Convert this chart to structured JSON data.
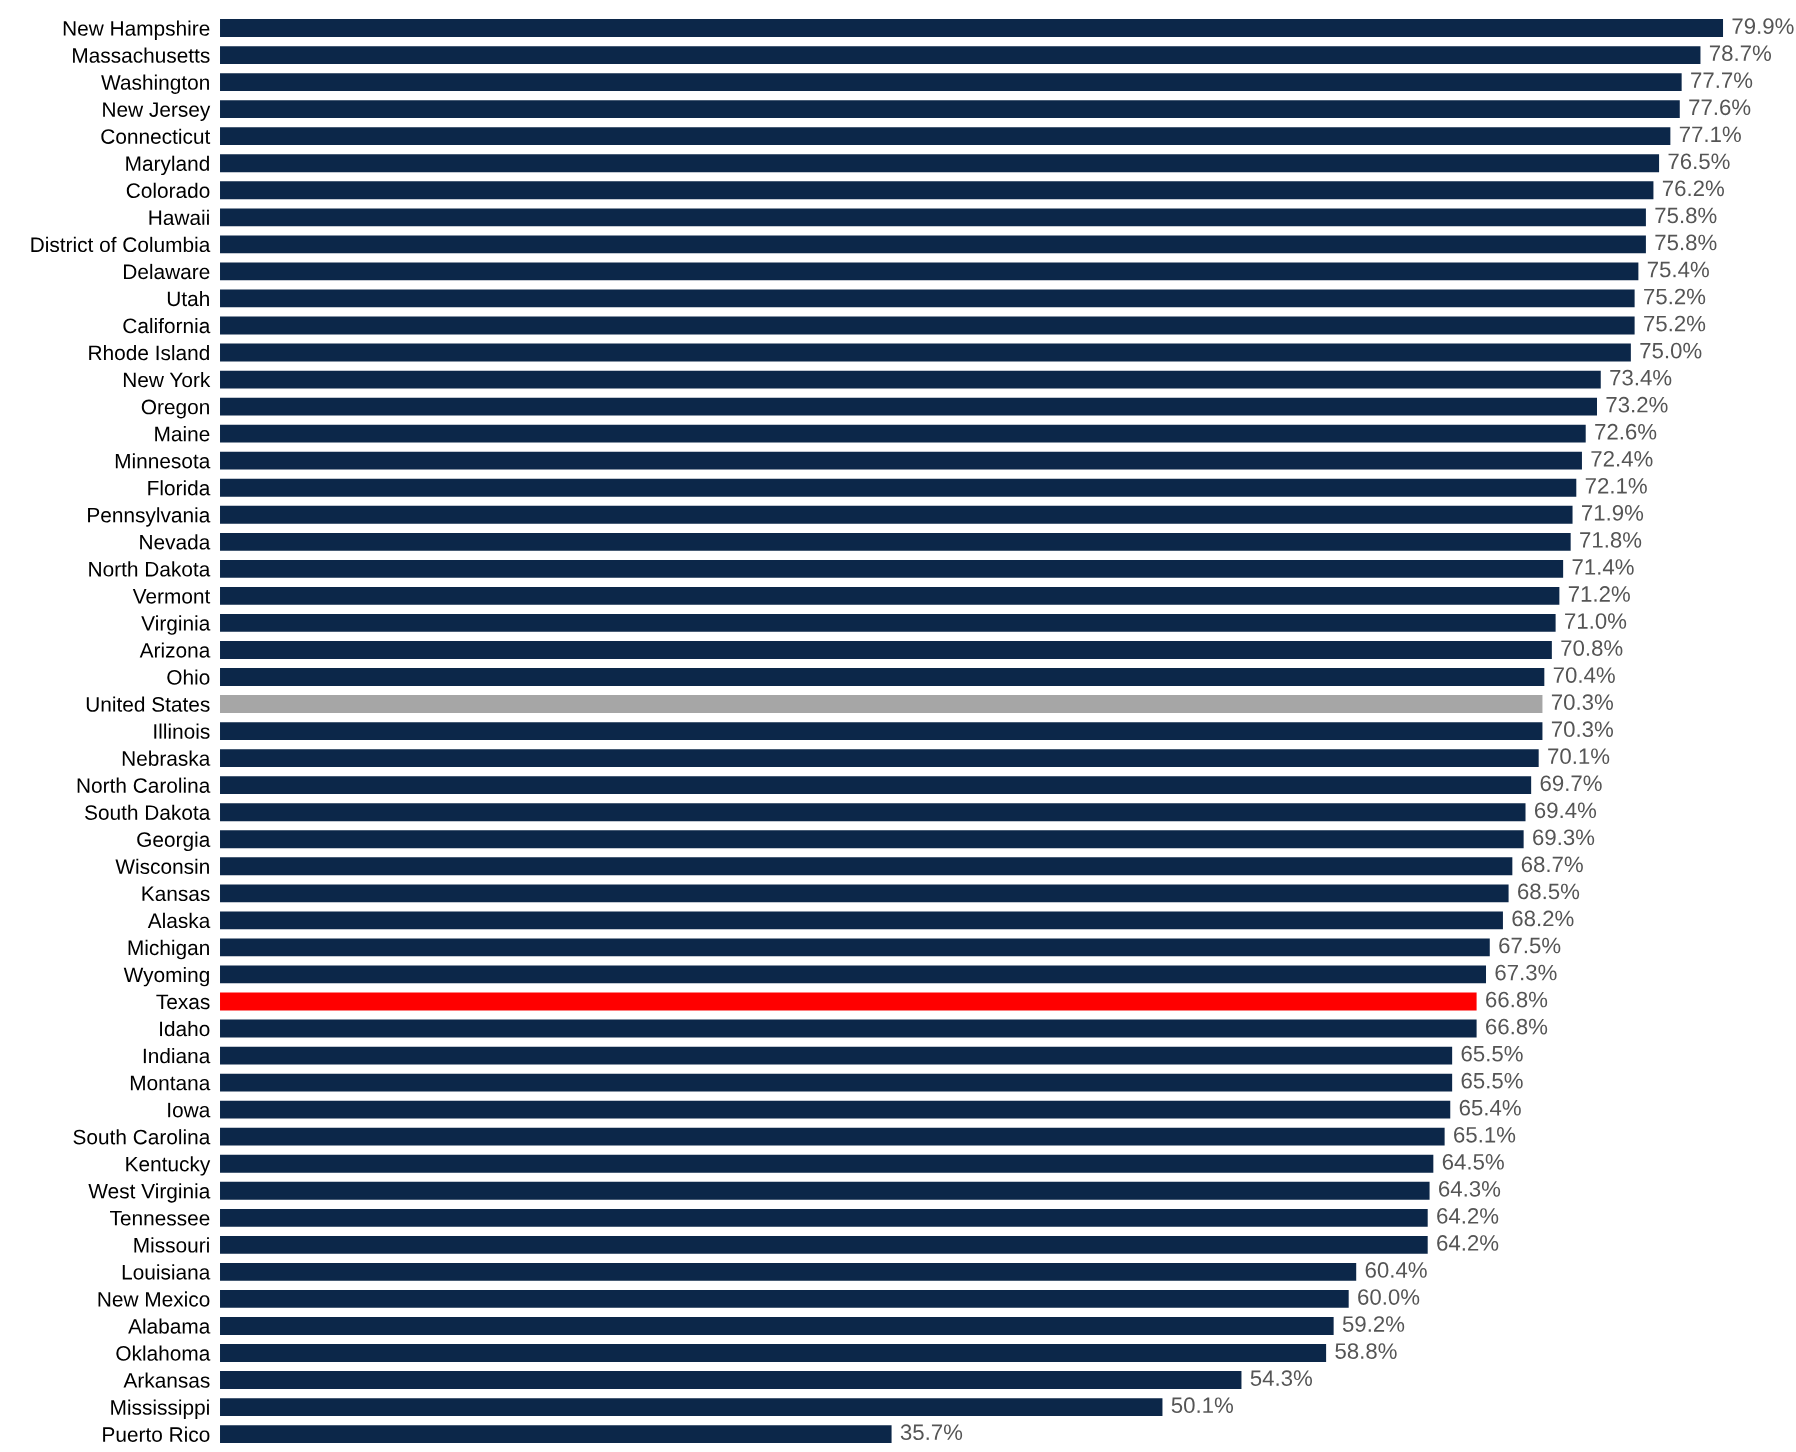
{
  "chart_data": {
    "type": "bar",
    "orientation": "horizontal",
    "data_labels": true,
    "grid": false,
    "legend": false,
    "tick_labels": "y",
    "categories": [
      "New Hampshire",
      "Massachusetts",
      "Washington",
      "New Jersey",
      "Connecticut",
      "Maryland",
      "Colorado",
      "Hawaii",
      "District of Columbia",
      "Delaware",
      "Utah",
      "California",
      "Rhode Island",
      "New York",
      "Oregon",
      "Maine",
      "Minnesota",
      "Florida",
      "Pennsylvania",
      "Nevada",
      "North Dakota",
      "Vermont",
      "Virginia",
      "Arizona",
      "Ohio",
      "United States",
      "Illinois",
      "Nebraska",
      "North Carolina",
      "South Dakota",
      "Georgia",
      "Wisconsin",
      "Kansas",
      "Alaska",
      "Michigan",
      "Wyoming",
      "Texas",
      "Idaho",
      "Indiana",
      "Montana",
      "Iowa",
      "South Carolina",
      "Kentucky",
      "West Virginia",
      "Tennessee",
      "Missouri",
      "Louisiana",
      "New Mexico",
      "Alabama",
      "Oklahoma",
      "Arkansas",
      "Mississippi",
      "Puerto Rico"
    ],
    "values": [
      79.9,
      78.7,
      77.7,
      77.6,
      77.1,
      76.5,
      76.2,
      75.8,
      75.8,
      75.4,
      75.2,
      75.2,
      75.0,
      73.4,
      73.2,
      72.6,
      72.4,
      72.1,
      71.9,
      71.8,
      71.4,
      71.2,
      71.0,
      70.8,
      70.4,
      70.3,
      70.3,
      70.1,
      69.7,
      69.4,
      69.3,
      68.7,
      68.5,
      68.2,
      67.5,
      67.3,
      66.8,
      66.8,
      65.5,
      65.5,
      65.4,
      65.1,
      64.5,
      64.3,
      64.2,
      64.2,
      60.4,
      60.0,
      59.2,
      58.8,
      54.3,
      50.1,
      35.7
    ],
    "value_labels": [
      "79.9%",
      "78.7%",
      "77.7%",
      "77.6%",
      "77.1%",
      "76.5%",
      "76.2%",
      "75.8%",
      "75.8%",
      "75.4%",
      "75.2%",
      "75.2%",
      "75.0%",
      "73.4%",
      "73.2%",
      "72.6%",
      "72.4%",
      "72.1%",
      "71.9%",
      "71.8%",
      "71.4%",
      "71.2%",
      "71.0%",
      "70.8%",
      "70.4%",
      "70.3%",
      "70.3%",
      "70.1%",
      "69.7%",
      "69.4%",
      "69.3%",
      "68.7%",
      "68.5%",
      "68.2%",
      "67.5%",
      "67.3%",
      "66.8%",
      "66.8%",
      "65.5%",
      "65.5%",
      "65.4%",
      "65.1%",
      "64.5%",
      "64.3%",
      "64.2%",
      "64.2%",
      "60.4%",
      "60.0%",
      "59.2%",
      "58.8%",
      "54.3%",
      "50.1%",
      "35.7%"
    ],
    "colors": [
      "#0c2749",
      "#0c2749",
      "#0c2749",
      "#0c2749",
      "#0c2749",
      "#0c2749",
      "#0c2749",
      "#0c2749",
      "#0c2749",
      "#0c2749",
      "#0c2749",
      "#0c2749",
      "#0c2749",
      "#0c2749",
      "#0c2749",
      "#0c2749",
      "#0c2749",
      "#0c2749",
      "#0c2749",
      "#0c2749",
      "#0c2749",
      "#0c2749",
      "#0c2749",
      "#0c2749",
      "#0c2749",
      "#a6a6a6",
      "#0c2749",
      "#0c2749",
      "#0c2749",
      "#0c2749",
      "#0c2749",
      "#0c2749",
      "#0c2749",
      "#0c2749",
      "#0c2749",
      "#0c2749",
      "#ff0000",
      "#0c2749",
      "#0c2749",
      "#0c2749",
      "#0c2749",
      "#0c2749",
      "#0c2749",
      "#0c2749",
      "#0c2749",
      "#0c2749",
      "#0c2749",
      "#0c2749",
      "#0c2749",
      "#0c2749",
      "#0c2749",
      "#0c2749",
      "#0c2749"
    ]
  }
}
